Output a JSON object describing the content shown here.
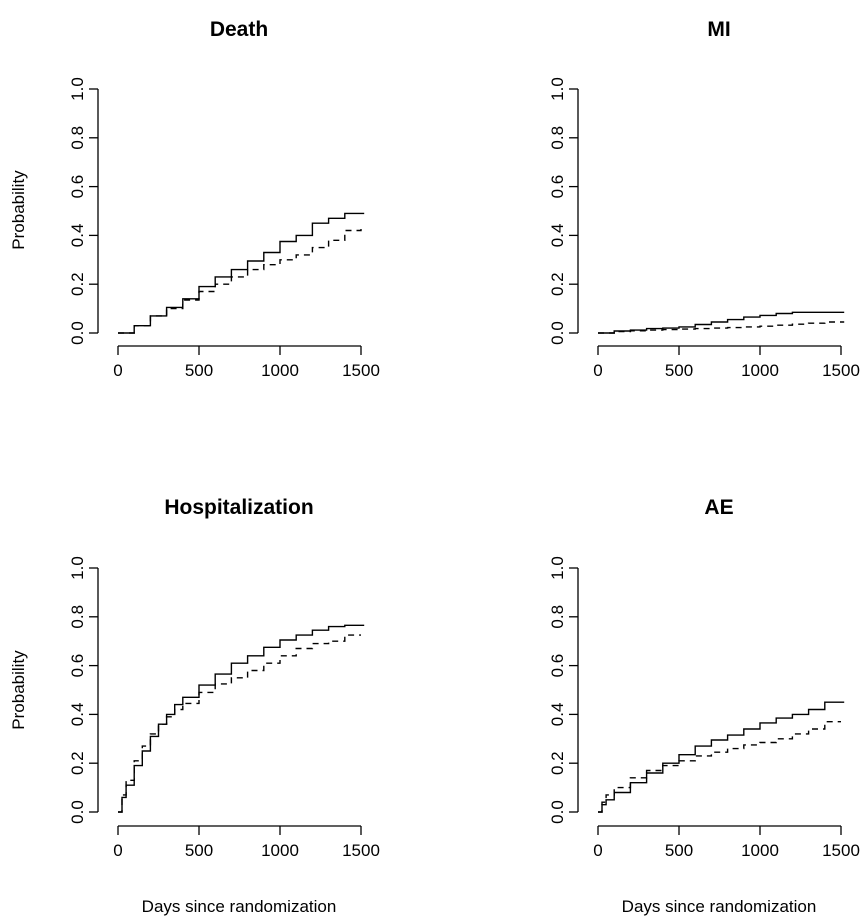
{
  "chart_data": [
    {
      "type": "line",
      "title": "Death",
      "ylabel": "Probability",
      "xlabel": "",
      "xlim": [
        0,
        1500
      ],
      "ylim": [
        0,
        1
      ],
      "xticks": [
        "0",
        "500",
        "1000",
        "1500"
      ],
      "yticks": [
        "0.0",
        "0.2",
        "0.4",
        "0.6",
        "0.8",
        "1.0"
      ],
      "series": [
        {
          "style": "solid",
          "step": true,
          "x": [
            0,
            100,
            200,
            300,
            400,
            500,
            600,
            700,
            800,
            900,
            1000,
            1100,
            1200,
            1300,
            1400,
            1520
          ],
          "y": [
            0,
            0.03,
            0.07,
            0.105,
            0.14,
            0.19,
            0.23,
            0.26,
            0.295,
            0.33,
            0.375,
            0.4,
            0.45,
            0.47,
            0.49,
            0.49
          ]
        },
        {
          "style": "dashed",
          "step": true,
          "x": [
            0,
            100,
            200,
            300,
            400,
            500,
            600,
            700,
            800,
            900,
            1000,
            1100,
            1200,
            1300,
            1400,
            1500
          ],
          "y": [
            0,
            0.03,
            0.07,
            0.1,
            0.135,
            0.17,
            0.2,
            0.23,
            0.26,
            0.28,
            0.3,
            0.32,
            0.35,
            0.38,
            0.42,
            0.44
          ]
        }
      ]
    },
    {
      "type": "line",
      "title": "MI",
      "ylabel": "",
      "xlabel": "",
      "xlim": [
        0,
        1500
      ],
      "ylim": [
        0,
        1
      ],
      "xticks": [
        "0",
        "500",
        "1000",
        "1500"
      ],
      "yticks": [
        "0.0",
        "0.2",
        "0.4",
        "0.6",
        "0.8",
        "1.0"
      ],
      "series": [
        {
          "style": "solid",
          "step": true,
          "x": [
            0,
            100,
            200,
            300,
            400,
            500,
            600,
            700,
            800,
            900,
            1000,
            1100,
            1200,
            1300,
            1400,
            1520
          ],
          "y": [
            0,
            0.008,
            0.012,
            0.018,
            0.02,
            0.025,
            0.035,
            0.045,
            0.055,
            0.065,
            0.072,
            0.08,
            0.085,
            0.085,
            0.085,
            0.085
          ]
        },
        {
          "style": "dashed",
          "step": true,
          "x": [
            0,
            100,
            200,
            300,
            400,
            500,
            600,
            700,
            800,
            900,
            1000,
            1100,
            1200,
            1300,
            1400,
            1520
          ],
          "y": [
            0,
            0.006,
            0.009,
            0.012,
            0.014,
            0.016,
            0.018,
            0.02,
            0.022,
            0.025,
            0.028,
            0.032,
            0.036,
            0.04,
            0.045,
            0.045
          ]
        }
      ]
    },
    {
      "type": "line",
      "title": "Hospitalization",
      "ylabel": "Probability",
      "xlabel": "Days since randomization",
      "xlim": [
        0,
        1500
      ],
      "ylim": [
        0,
        1
      ],
      "xticks": [
        "0",
        "500",
        "1000",
        "1500"
      ],
      "yticks": [
        "0.0",
        "0.2",
        "0.4",
        "0.6",
        "0.8",
        "1.0"
      ],
      "series": [
        {
          "style": "solid",
          "step": true,
          "x": [
            0,
            25,
            50,
            100,
            150,
            200,
            250,
            300,
            350,
            400,
            500,
            600,
            700,
            800,
            900,
            1000,
            1100,
            1200,
            1300,
            1400,
            1520
          ],
          "y": [
            0,
            0.06,
            0.11,
            0.19,
            0.25,
            0.31,
            0.36,
            0.4,
            0.44,
            0.47,
            0.52,
            0.565,
            0.61,
            0.64,
            0.675,
            0.705,
            0.725,
            0.745,
            0.76,
            0.765,
            0.765
          ]
        },
        {
          "style": "dashed",
          "step": true,
          "x": [
            0,
            25,
            50,
            100,
            150,
            200,
            250,
            300,
            350,
            400,
            500,
            600,
            700,
            800,
            900,
            1000,
            1100,
            1200,
            1300,
            1400,
            1500
          ],
          "y": [
            0,
            0.07,
            0.13,
            0.21,
            0.27,
            0.32,
            0.36,
            0.39,
            0.42,
            0.445,
            0.49,
            0.525,
            0.55,
            0.58,
            0.61,
            0.64,
            0.67,
            0.69,
            0.7,
            0.725,
            0.725
          ]
        }
      ]
    },
    {
      "type": "line",
      "title": "AE",
      "ylabel": "",
      "xlabel": "Days since randomization",
      "xlim": [
        0,
        1500
      ],
      "ylim": [
        0,
        1
      ],
      "xticks": [
        "0",
        "500",
        "1000",
        "1500"
      ],
      "yticks": [
        "0.0",
        "0.2",
        "0.4",
        "0.6",
        "0.8",
        "1.0"
      ],
      "series": [
        {
          "style": "solid",
          "step": true,
          "x": [
            0,
            25,
            50,
            100,
            200,
            300,
            400,
            500,
            600,
            700,
            800,
            900,
            1000,
            1100,
            1200,
            1300,
            1400,
            1520
          ],
          "y": [
            0,
            0.03,
            0.05,
            0.08,
            0.12,
            0.16,
            0.2,
            0.235,
            0.27,
            0.295,
            0.315,
            0.34,
            0.365,
            0.385,
            0.4,
            0.42,
            0.45,
            0.45
          ]
        },
        {
          "style": "dashed",
          "step": true,
          "x": [
            0,
            25,
            50,
            100,
            200,
            300,
            400,
            500,
            600,
            700,
            800,
            900,
            1000,
            1100,
            1200,
            1300,
            1400,
            1500
          ],
          "y": [
            0,
            0.04,
            0.07,
            0.1,
            0.14,
            0.17,
            0.19,
            0.21,
            0.23,
            0.245,
            0.26,
            0.275,
            0.285,
            0.3,
            0.32,
            0.34,
            0.37,
            0.37
          ]
        }
      ]
    }
  ]
}
